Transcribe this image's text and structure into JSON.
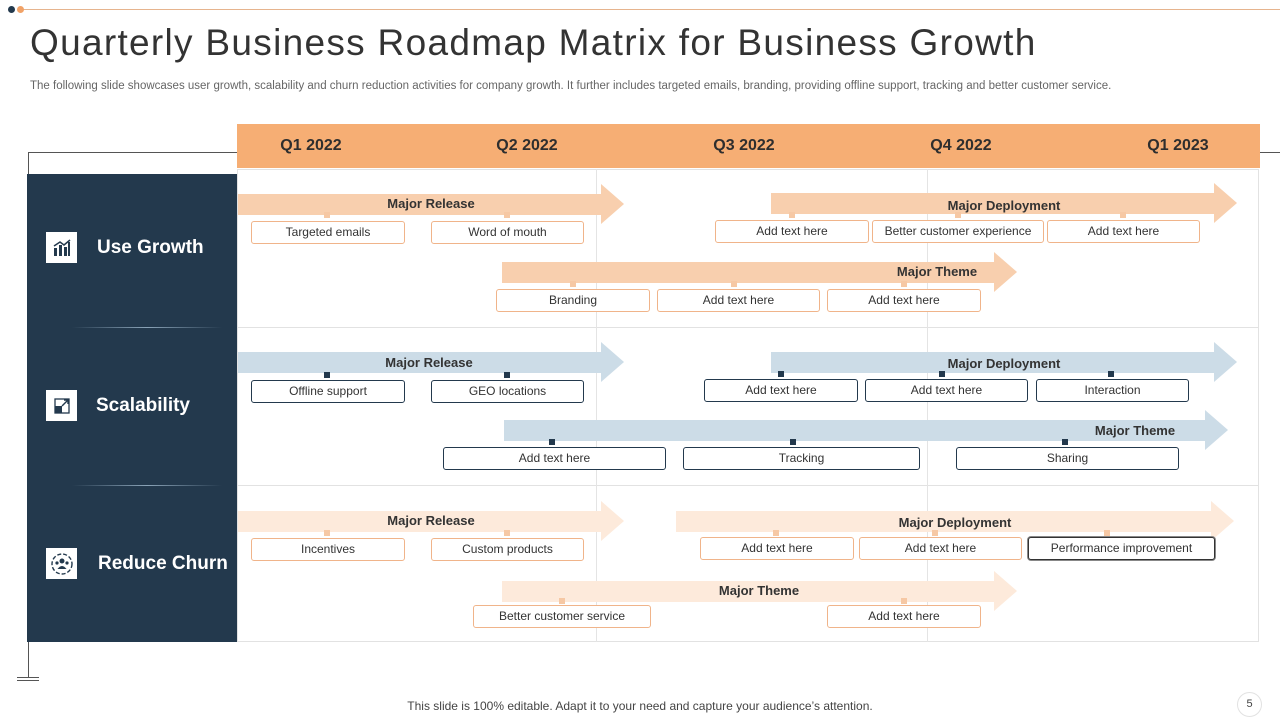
{
  "title": "Quarterly Business Roadmap Matrix for Business Growth",
  "subtitle": "The following slide showcases user growth, scalability and churn reduction activities for company growth. It further includes targeted emails, branding, providing offline support, tracking and better customer service.",
  "quarters": [
    "Q1 2022",
    "Q2 2022",
    "Q3 2022",
    "Q4 2022",
    "Q1 2023"
  ],
  "categories": [
    {
      "label": "Use Growth",
      "icon": "bar-chart-icon"
    },
    {
      "label": "Scalability",
      "icon": "scale-arrows-icon"
    },
    {
      "label": "Reduce Churn",
      "icon": "people-circle-icon"
    }
  ],
  "rows": [
    {
      "release": {
        "label": "Major Release",
        "items": [
          "Targeted emails",
          "Word of mouth"
        ]
      },
      "deployment": {
        "label": "Major Deployment",
        "items": [
          "Add text here",
          "Better customer experience",
          "Add text here"
        ]
      },
      "theme": {
        "label": "Major Theme",
        "items": [
          "Branding",
          "Add text here",
          "Add text here"
        ]
      }
    },
    {
      "release": {
        "label": "Major Release",
        "items": [
          "Offline support",
          "GEO locations"
        ]
      },
      "deployment": {
        "label": "Major Deployment",
        "items": [
          "Add text here",
          "Add text here",
          "Interaction"
        ]
      },
      "theme": {
        "label": "Major Theme",
        "items": [
          "Add text here",
          "Tracking",
          "Sharing"
        ]
      }
    },
    {
      "release": {
        "label": "Major Release",
        "items": [
          "Incentives",
          "Custom products"
        ]
      },
      "deployment": {
        "label": "Major Deployment",
        "items": [
          "Add text here",
          "Add text here",
          "Performance improvement"
        ]
      },
      "theme": {
        "label": "Major Theme",
        "items": [
          "Better customer service",
          "Add text here"
        ]
      }
    }
  ],
  "footer": "This slide is 100% editable. Adapt it to your need and capture your audience’s attention.",
  "page_number": "5",
  "colors": {
    "navy": "#23394d",
    "orange": "#f6ae74",
    "light_orange": "#f8cfae",
    "light_blue": "#ccdce7",
    "pale_peach": "#fdeadb"
  }
}
